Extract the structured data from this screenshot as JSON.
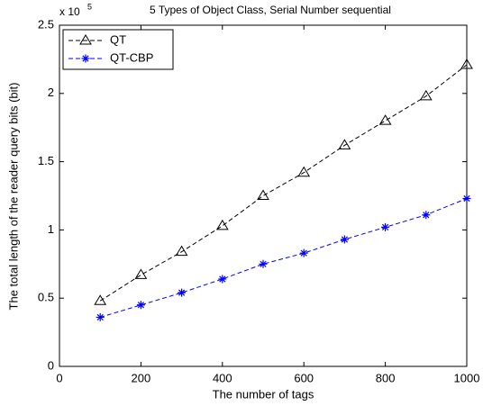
{
  "chart_data": {
    "type": "line",
    "title": "5 Types of Object Class, Serial Number sequential",
    "x_label": "The number of tags",
    "y_label": "The total length of the reader query bits (bit)",
    "y_scale_base": "x 10",
    "y_scale_exponent": "5",
    "x": [
      100,
      200,
      300,
      400,
      500,
      600,
      700,
      800,
      900,
      1000
    ],
    "series": [
      {
        "name": "QT",
        "color": "#000000",
        "marker": "triangle",
        "dash": true,
        "values": [
          0.48,
          0.67,
          0.84,
          1.03,
          1.25,
          1.42,
          1.62,
          1.8,
          1.98,
          2.21
        ]
      },
      {
        "name": "QT-CBP",
        "color": "#0000ff",
        "marker": "asterisk",
        "dash": true,
        "values": [
          0.36,
          0.45,
          0.54,
          0.64,
          0.75,
          0.83,
          0.93,
          1.02,
          1.11,
          1.23
        ]
      }
    ],
    "xlim": [
      0,
      1000
    ],
    "xticks": [
      0,
      200,
      400,
      600,
      800,
      1000
    ],
    "ylim": [
      0,
      2.5
    ],
    "yticks": [
      0,
      0.5,
      1,
      1.5,
      2,
      2.5
    ],
    "grid": false,
    "legend": "upper left"
  }
}
